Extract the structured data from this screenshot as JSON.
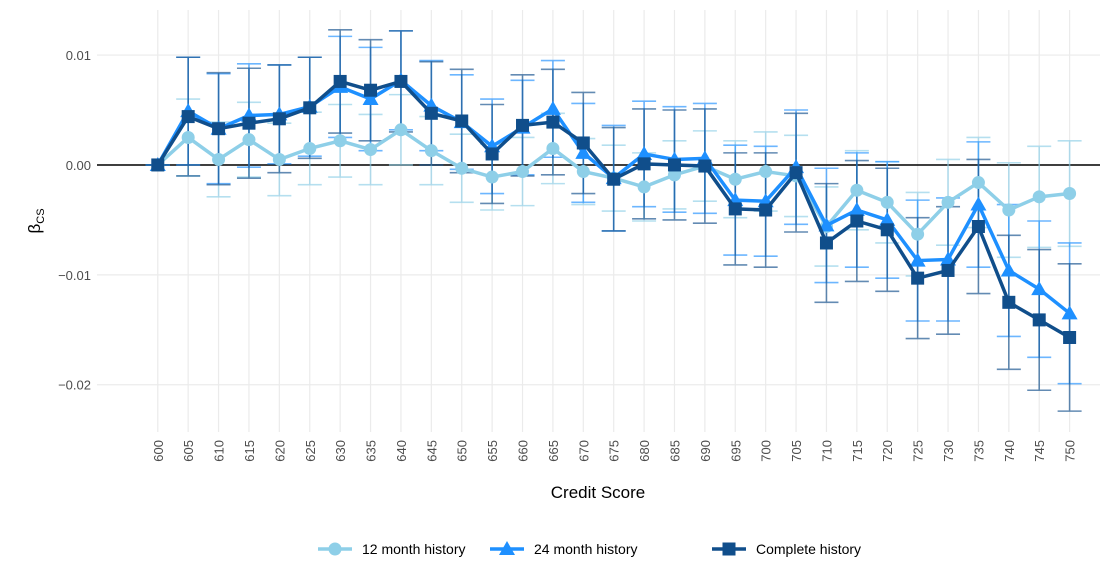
{
  "chart_data": {
    "type": "line",
    "x_label": "Credit Score",
    "y_label": "β",
    "y_label_sub": "CS",
    "x": [
      600,
      605,
      610,
      615,
      620,
      625,
      630,
      635,
      640,
      645,
      650,
      655,
      660,
      665,
      670,
      675,
      680,
      685,
      690,
      695,
      700,
      705,
      710,
      715,
      720,
      725,
      730,
      735,
      740,
      745,
      750
    ],
    "xlim": [
      590,
      755
    ],
    "xticks": [
      600,
      605,
      610,
      615,
      620,
      625,
      630,
      635,
      640,
      645,
      650,
      655,
      660,
      665,
      670,
      675,
      680,
      685,
      690,
      695,
      700,
      705,
      710,
      715,
      720,
      725,
      730,
      735,
      740,
      745,
      750
    ],
    "ylim": [
      -0.0243,
      0.0141
    ],
    "yticks": [
      {
        "value": -0.02,
        "label": "−0.02"
      },
      {
        "value": -0.01,
        "label": "−0.01"
      },
      {
        "value": 0,
        "label": "0.00"
      },
      0.01
    ],
    "hline": 0,
    "grid": true,
    "legend": "bottom",
    "series": [
      {
        "name": "12 month history",
        "color": "#8ecfe8",
        "marker": "circle",
        "values": [
          0,
          0.0025,
          0.0005,
          0.0023,
          0.0005,
          0.0015,
          0.0022,
          0.0014,
          0.0032,
          0.0013,
          -0.0003,
          -0.0011,
          -0.0006,
          0.0015,
          -0.0006,
          -0.0012,
          -0.002,
          -0.0009,
          -0.0001,
          -0.0013,
          -0.0006,
          -0.001,
          -0.0056,
          -0.0023,
          -0.0034,
          -0.0063,
          -0.0034,
          -0.0016,
          -0.0041,
          -0.0029,
          -0.0026
        ],
        "errors": [
          0,
          0.0035,
          0.0034,
          0.0034,
          0.0033,
          0.0033,
          0.0033,
          0.0032,
          0.0032,
          0.0031,
          0.0031,
          0.003,
          0.0031,
          0.0032,
          0.003,
          0.003,
          0.0031,
          0.0031,
          0.0032,
          0.0035,
          0.0036,
          0.0037,
          0.0036,
          0.0036,
          0.0037,
          0.0038,
          0.0039,
          0.0041,
          0.0043,
          0.0046,
          0.0048
        ]
      },
      {
        "name": "24 month history",
        "color": "#1e90ff",
        "marker": "triangle",
        "values": [
          0,
          0.0049,
          0.0033,
          0.0045,
          0.0046,
          0.0053,
          0.0071,
          0.006,
          0.0077,
          0.0054,
          0.0039,
          0.0017,
          0.0034,
          0.0051,
          0.0011,
          -0.0012,
          0.001,
          0.0005,
          0.0006,
          -0.0032,
          -0.0033,
          -0.0002,
          -0.0055,
          -0.0041,
          -0.005,
          -0.0087,
          -0.0086,
          -0.0036,
          -0.0096,
          -0.0113,
          -0.0135
        ],
        "errors": [
          0,
          0.0049,
          0.005,
          0.0047,
          0.0045,
          0.0045,
          0.0046,
          0.0047,
          0.0045,
          0.0041,
          0.0043,
          0.0043,
          0.0043,
          0.0044,
          0.0045,
          0.0048,
          0.0048,
          0.0048,
          0.005,
          0.005,
          0.005,
          0.0052,
          0.0052,
          0.0052,
          0.0053,
          0.0055,
          0.0056,
          0.0057,
          0.006,
          0.0062,
          0.0064
        ]
      },
      {
        "name": "Complete history",
        "color": "#104e8b",
        "marker": "square",
        "values": [
          0,
          0.0044,
          0.0033,
          0.0038,
          0.0042,
          0.0052,
          0.0076,
          0.0068,
          0.0076,
          0.0047,
          0.004,
          0.001,
          0.0036,
          0.0039,
          0.002,
          -0.0013,
          0.0001,
          0,
          -0.0001,
          -0.004,
          -0.0041,
          -0.0007,
          -0.0071,
          -0.0051,
          -0.0059,
          -0.0103,
          -0.0096,
          -0.0056,
          -0.0125,
          -0.0141,
          -0.0157
        ],
        "errors": [
          0,
          0.0054,
          0.0051,
          0.005,
          0.0049,
          0.0046,
          0.0047,
          0.0046,
          0.0046,
          0.0047,
          0.0047,
          0.0045,
          0.0046,
          0.0048,
          0.0046,
          0.0047,
          0.005,
          0.005,
          0.0052,
          0.0051,
          0.0052,
          0.0054,
          0.0054,
          0.0055,
          0.0056,
          0.0055,
          0.0058,
          0.0061,
          0.0061,
          0.0064,
          0.0067
        ]
      }
    ]
  }
}
